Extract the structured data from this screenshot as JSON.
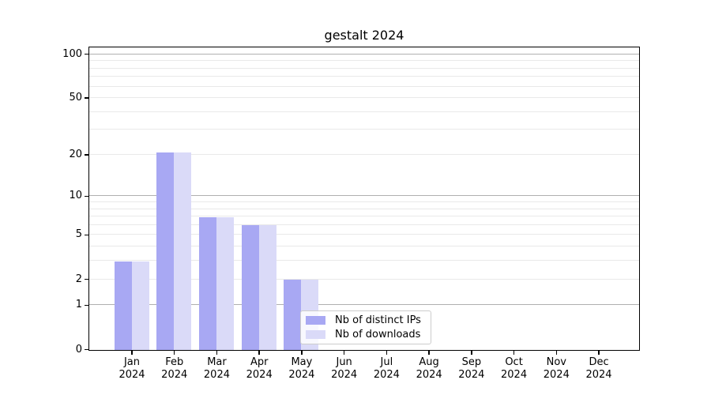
{
  "title": "gestalt 2024",
  "chart_data": {
    "type": "bar",
    "title": "gestalt 2024",
    "xlabel": "",
    "ylabel": "",
    "categories": [
      "Jan 2024",
      "Feb 2024",
      "Mar 2024",
      "Apr 2024",
      "May 2024",
      "Jun 2024",
      "Jul 2024",
      "Aug 2024",
      "Sep 2024",
      "Oct 2024",
      "Nov 2024",
      "Dec 2024"
    ],
    "series": [
      {
        "name": "Nb of distinct IPs",
        "color": "#a8a8f3",
        "values": [
          3,
          21,
          7,
          6,
          2,
          0,
          0,
          0,
          0,
          0,
          0,
          0
        ]
      },
      {
        "name": "Nb of downloads",
        "color": "#dadaf8",
        "values": [
          3,
          21,
          7,
          6,
          2,
          0,
          0,
          0,
          0,
          0,
          0,
          0
        ]
      }
    ],
    "yscale": "log1p",
    "ylim": [
      0,
      115
    ],
    "yticks": [
      0,
      1,
      2,
      5,
      10,
      20,
      50,
      100
    ],
    "gridlines": {
      "major": [
        1,
        10,
        100
      ],
      "minor": [
        2,
        3,
        4,
        5,
        6,
        7,
        8,
        9,
        20,
        30,
        40,
        50,
        60,
        70,
        80,
        90
      ],
      "major_color": "#b0b0b0",
      "minor_color": "#e9e9e9"
    },
    "legend": {
      "position": "lower center-left",
      "background": "#ffffff",
      "border_color": "#cccccc"
    }
  },
  "colors": {
    "background": "#ffffff",
    "axis": "#000000",
    "text": "#000000"
  }
}
